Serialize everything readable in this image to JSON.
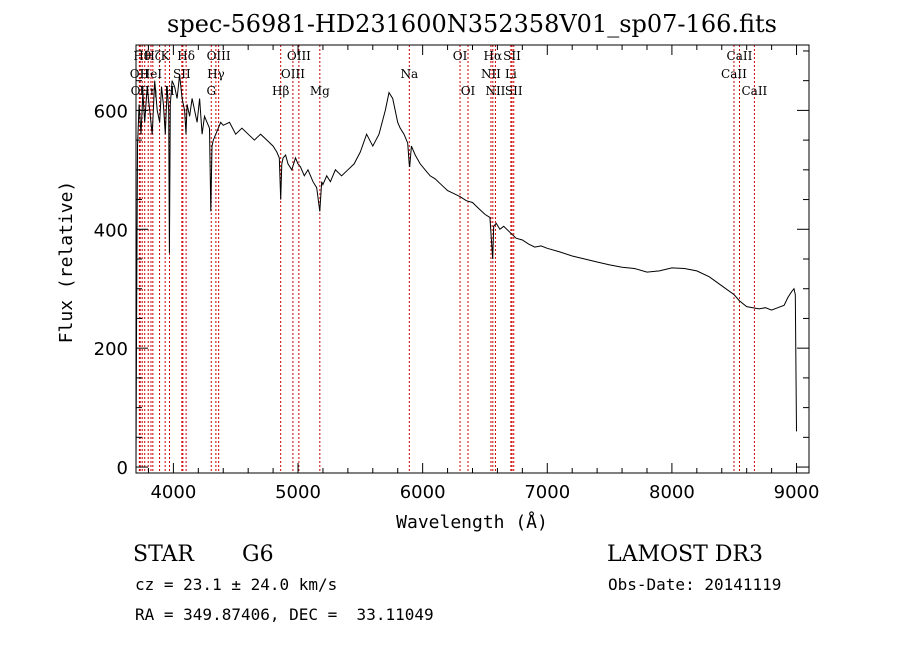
{
  "chart_data": {
    "type": "line",
    "title": "spec-56981-HD231600N352358V01_sp07-166.fits",
    "xlabel": "Wavelength (Å)",
    "ylabel": "Flux (relative)",
    "xlim": [
      3700,
      9100
    ],
    "ylim": [
      -10,
      710
    ],
    "xticks": [
      4000,
      5000,
      6000,
      7000,
      8000,
      9000
    ],
    "yticks": [
      0,
      200,
      400,
      600
    ],
    "xtick_labels": [
      "4000",
      "5000",
      "6000",
      "7000",
      "8000",
      "9000"
    ],
    "ytick_labels": [
      "0",
      "200",
      "400",
      "600"
    ],
    "grid": false,
    "series": [
      {
        "name": "flux",
        "x": [
          3700,
          3705,
          3712,
          3725,
          3740,
          3755,
          3770,
          3790,
          3810,
          3830,
          3850,
          3870,
          3890,
          3905,
          3920,
          3935,
          3950,
          3962,
          3968,
          3975,
          3990,
          4010,
          4030,
          4050,
          4070,
          4090,
          4101,
          4110,
          4130,
          4150,
          4170,
          4190,
          4210,
          4230,
          4250,
          4270,
          4290,
          4300,
          4310,
          4320,
          4340,
          4360,
          4380,
          4400,
          4450,
          4500,
          4550,
          4600,
          4650,
          4700,
          4750,
          4800,
          4830,
          4850,
          4861,
          4870,
          4880,
          4900,
          4920,
          4950,
          4980,
          5000,
          5020,
          5050,
          5080,
          5120,
          5150,
          5175,
          5190,
          5200,
          5230,
          5260,
          5300,
          5350,
          5400,
          5450,
          5500,
          5550,
          5600,
          5650,
          5700,
          5730,
          5760,
          5780,
          5800,
          5820,
          5850,
          5880,
          5892,
          5896,
          5910,
          5940,
          5980,
          6020,
          6060,
          6100,
          6150,
          6200,
          6250,
          6300,
          6350,
          6400,
          6450,
          6500,
          6540,
          6562,
          6570,
          6590,
          6620,
          6650,
          6700,
          6750,
          6800,
          6850,
          6900,
          6950,
          7000,
          7100,
          7200,
          7300,
          7400,
          7500,
          7600,
          7700,
          7800,
          7900,
          8000,
          8100,
          8200,
          8300,
          8400,
          8500,
          8540,
          8600,
          8650,
          8700,
          8750,
          8800,
          8850,
          8900,
          8930,
          8960,
          8980,
          8990,
          9000
        ],
        "y": [
          0,
          250,
          540,
          610,
          560,
          630,
          580,
          640,
          600,
          560,
          650,
          600,
          580,
          640,
          610,
          560,
          640,
          600,
          360,
          610,
          650,
          640,
          620,
          660,
          620,
          600,
          560,
          610,
          590,
          620,
          600,
          580,
          620,
          560,
          590,
          580,
          570,
          430,
          540,
          550,
          560,
          570,
          580,
          575,
          580,
          560,
          570,
          560,
          550,
          560,
          550,
          540,
          530,
          520,
          450,
          510,
          520,
          525,
          510,
          500,
          520,
          510,
          505,
          490,
          500,
          480,
          470,
          430,
          480,
          475,
          490,
          480,
          500,
          490,
          500,
          510,
          530,
          560,
          540,
          560,
          600,
          630,
          620,
          600,
          580,
          570,
          560,
          545,
          510,
          505,
          540,
          525,
          510,
          500,
          490,
          485,
          475,
          465,
          460,
          455,
          448,
          445,
          435,
          425,
          420,
          350,
          405,
          410,
          400,
          405,
          395,
          385,
          382,
          375,
          370,
          372,
          368,
          362,
          355,
          350,
          345,
          340,
          336,
          334,
          328,
          330,
          335,
          334,
          330,
          320,
          305,
          290,
          280,
          270,
          268,
          266,
          268,
          264,
          268,
          272,
          285,
          295,
          300,
          290,
          60
        ]
      }
    ],
    "lines": [
      {
        "x": 3727,
        "label": "OII",
        "row": 2
      },
      {
        "x": 3734,
        "label": "OII",
        "row": 3
      },
      {
        "x": 3750,
        "label": "Hθ",
        "row": 1
      },
      {
        "x": 3770,
        "label": "",
        "row": 0
      },
      {
        "x": 3798,
        "label": "Hη",
        "row": 3
      },
      {
        "x": 3820,
        "label": "HeI",
        "row": 2
      },
      {
        "x": 3835,
        "label": "Hζ",
        "row": 1
      },
      {
        "x": 3889,
        "label": "",
        "row": 0
      },
      {
        "x": 3934,
        "label": "K",
        "row": 1
      },
      {
        "x": 3969,
        "label": "H",
        "row": 3
      },
      {
        "x": 4068,
        "label": "SII",
        "row": 2
      },
      {
        "x": 4076,
        "label": "",
        "row": 0
      },
      {
        "x": 4102,
        "label": "Hδ",
        "row": 1
      },
      {
        "x": 4304,
        "label": "G",
        "row": 3
      },
      {
        "x": 4341,
        "label": "Hγ",
        "row": 2
      },
      {
        "x": 4363,
        "label": "OIII",
        "row": 1
      },
      {
        "x": 4861,
        "label": "Hβ",
        "row": 3
      },
      {
        "x": 4959,
        "label": "OIII",
        "row": 2
      },
      {
        "x": 5007,
        "label": "OIII",
        "row": 1
      },
      {
        "x": 5175,
        "label": "Mg",
        "row": 3
      },
      {
        "x": 5893,
        "label": "Na",
        "row": 2
      },
      {
        "x": 6300,
        "label": "OI",
        "row": 1
      },
      {
        "x": 6364,
        "label": "OI",
        "row": 3
      },
      {
        "x": 6548,
        "label": "NII",
        "row": 2
      },
      {
        "x": 6563,
        "label": "Hα",
        "row": 1
      },
      {
        "x": 6584,
        "label": "NII",
        "row": 3
      },
      {
        "x": 6708,
        "label": "Li",
        "row": 2
      },
      {
        "x": 6717,
        "label": "SII",
        "row": 1
      },
      {
        "x": 6731,
        "label": "SII",
        "row": 3
      },
      {
        "x": 8498,
        "label": "CaII",
        "row": 2
      },
      {
        "x": 8542,
        "label": "CaII",
        "row": 1
      },
      {
        "x": 8662,
        "label": "CaII",
        "row": 3
      }
    ]
  },
  "info": {
    "object_type": "STAR",
    "subclass": "G6",
    "survey": "LAMOST DR3",
    "cz": "cz = 23.1 ± 24.0 km/s",
    "obs_date": "Obs-Date: 20141119",
    "coords": "RA = 349.87406, DEC =  33.11049"
  },
  "colors": {
    "line": "#000000",
    "marker": "#cc0000",
    "background": "#ffffff"
  }
}
